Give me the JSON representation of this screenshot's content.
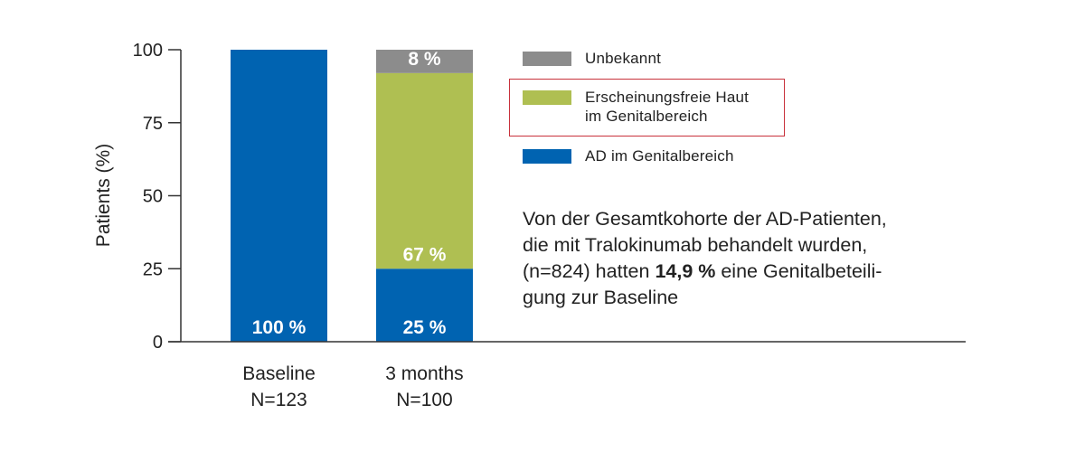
{
  "chart_data": {
    "type": "bar",
    "stacked": true,
    "title": "",
    "xlabel": "",
    "ylabel": "Patients (%)",
    "ylim": [
      0,
      100
    ],
    "yticks": [
      0,
      25,
      50,
      75,
      100
    ],
    "grid": false,
    "legend_position": "right",
    "categories": [
      {
        "label": "Baseline",
        "sublabel": "N=123"
      },
      {
        "label": "3 months",
        "sublabel": "N=100"
      }
    ],
    "series": [
      {
        "name": "AD im Genitalbereich",
        "color": "#0063b1",
        "values": [
          100,
          25
        ],
        "labels": [
          "100 %",
          "25 %"
        ]
      },
      {
        "name": "Erscheinungsfreie Haut im Genitalbereich",
        "color": "#afbf52",
        "values": [
          0,
          67
        ],
        "labels": [
          "",
          "67 %"
        ]
      },
      {
        "name": "Unbekannt",
        "color": "#8c8c8c",
        "values": [
          0,
          8
        ],
        "labels": [
          "",
          "8 %"
        ]
      }
    ]
  },
  "legend": {
    "items": [
      {
        "lines": [
          "Unbekannt"
        ],
        "color": "#8c8c8c",
        "highlighted": false
      },
      {
        "lines": [
          "Erscheinungsfreie Haut",
          "im Genitalbereich"
        ],
        "color": "#afbf52",
        "highlighted": true
      },
      {
        "lines": [
          "AD im Genitalbereich"
        ],
        "color": "#0063b1",
        "highlighted": false
      }
    ],
    "highlight_color": "#c8323c"
  },
  "note": {
    "line1": "Von der Gesamtkohorte der AD-Patienten,",
    "line2": "die mit Tralokinumab behandelt wurden,",
    "line3_pre": "(n=824) hatten ",
    "line3_bold": "14,9 %",
    "line3_post": " eine Genitalbeteili-",
    "line4": "gung zur Baseline"
  }
}
